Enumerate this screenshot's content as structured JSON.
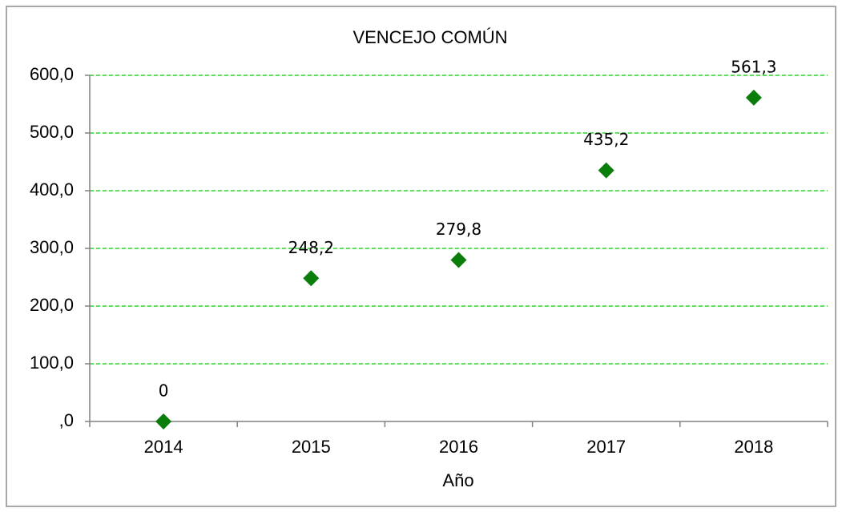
{
  "chart_data": {
    "type": "scatter",
    "title": "VENCEJO COMÚN",
    "x_label": "Año",
    "categories": [
      "2014",
      "2015",
      "2016",
      "2017",
      "2018"
    ],
    "values": [
      0,
      248.2,
      279.8,
      435.2,
      561.3
    ],
    "value_labels": [
      "0",
      "248,2",
      "279,8",
      "435,2",
      "561,3"
    ],
    "color": "#0b7d0b",
    "grid": true,
    "grid_color": "#33cc33",
    "ylim": [
      0,
      600
    ],
    "yticks": [
      {
        "value": 0,
        "label": ",0"
      },
      {
        "value": 100,
        "label": "100,0"
      },
      {
        "value": 200,
        "label": "200,0"
      },
      {
        "value": 300,
        "label": "300,0"
      },
      {
        "value": 400,
        "label": "400,0"
      },
      {
        "value": 500,
        "label": "500,0"
      },
      {
        "value": 600,
        "label": "600,0"
      }
    ]
  }
}
